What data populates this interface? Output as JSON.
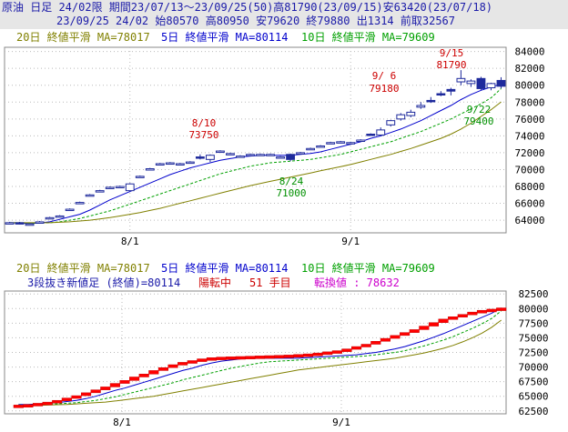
{
  "header": {
    "line1": "原油 日足 24/02限 期間23/07/13～23/09/25(50)高81790(23/09/15)安63420(23/07/18)",
    "line2": "23/09/25 24/02 始80570 高80950 安79620 終79880 出1314 前取32567"
  },
  "top_legend": {
    "ma20": "20日 終値平滑 MA=78017",
    "ma5": "5日 終値平滑 MA=80114",
    "ma10": "10日 終値平滑 MA=79609"
  },
  "bottom_legend": {
    "ma20": "20日 終値平滑 MA=78017",
    "ma5": "5日 終値平滑 MA=80114",
    "ma10": "10日 終値平滑 MA=79609"
  },
  "bottom_info": {
    "prefix": "3段抜き新値足 (終値)=80114",
    "status": "陽転中",
    "count": "51 手目",
    "switch": "転換値 : 78632"
  },
  "colors": {
    "header_bg": "#E6E6E6",
    "header_text": "#1A1AA8",
    "ma20": "#808000",
    "ma5": "#0000CC",
    "ma10": "#00A000",
    "up_fill": "#FFFFFF",
    "down_fill": "#1E2A9C",
    "candle_edge": "#1E2A9C",
    "brick_up": "#FF0000",
    "brick_edge": "#CC0000",
    "grid": "#BBBBBB",
    "annot_red": "#CC0000",
    "annot_green": "#009000",
    "magenta": "#CC00CC"
  },
  "chart_data": [
    {
      "type": "candlestick",
      "x": [
        "7/13",
        "7/14",
        "7/18",
        "7/19",
        "7/20",
        "7/21",
        "7/24",
        "7/25",
        "7/26",
        "7/27",
        "7/28",
        "7/31",
        "8/1",
        "8/2",
        "8/3",
        "8/4",
        "8/7",
        "8/8",
        "8/9",
        "8/10",
        "8/14",
        "8/15",
        "8/16",
        "8/17",
        "8/18",
        "8/21",
        "8/22",
        "8/23",
        "8/24",
        "8/25",
        "8/28",
        "8/29",
        "8/30",
        "8/31",
        "9/1",
        "9/4",
        "9/5",
        "9/6",
        "9/7",
        "9/8",
        "9/11",
        "9/12",
        "9/13",
        "9/14",
        "9/15",
        "9/19",
        "9/20",
        "9/21",
        "9/22",
        "9/25"
      ],
      "series": [
        {
          "name": "OHLC",
          "values": [
            [
              63700,
              63800,
              63600,
              63700
            ],
            [
              63700,
              63800,
              63500,
              63600
            ],
            [
              63500,
              63600,
              63420,
              63550
            ],
            [
              63800,
              63900,
              63700,
              63800
            ],
            [
              64300,
              64400,
              64200,
              64300
            ],
            [
              64500,
              64600,
              64400,
              64500
            ],
            [
              65300,
              65400,
              65200,
              65300
            ],
            [
              66100,
              66200,
              66000,
              66100
            ],
            [
              67000,
              67100,
              66900,
              67000
            ],
            [
              67500,
              67600,
              67400,
              67500
            ],
            [
              67800,
              68000,
              67700,
              67900
            ],
            [
              68000,
              68100,
              67900,
              68000
            ],
            [
              67500,
              68400,
              67400,
              68300
            ],
            [
              69200,
              69300,
              69100,
              69200
            ],
            [
              70100,
              70200,
              70000,
              70100
            ],
            [
              70700,
              70800,
              70600,
              70700
            ],
            [
              70800,
              70900,
              70700,
              70800
            ],
            [
              70700,
              70800,
              70600,
              70700
            ],
            [
              70900,
              71000,
              70800,
              70900
            ],
            [
              71500,
              71800,
              71200,
              71400
            ],
            [
              71200,
              71800,
              70900,
              71700
            ],
            [
              72200,
              72300,
              72100,
              72200
            ],
            [
              71900,
              72000,
              71800,
              71900
            ],
            [
              71600,
              71700,
              71500,
              71600
            ],
            [
              71800,
              71900,
              71700,
              71800
            ],
            [
              71800,
              71900,
              71700,
              71800
            ],
            [
              71800,
              71900,
              71700,
              71800
            ],
            [
              71500,
              71600,
              71400,
              71500
            ],
            [
              71800,
              71900,
              71000,
              71200
            ],
            [
              72000,
              72100,
              71900,
              72000
            ],
            [
              72500,
              72600,
              72400,
              72500
            ],
            [
              72800,
              72900,
              72700,
              72800
            ],
            [
              73200,
              73300,
              73100,
              73200
            ],
            [
              73300,
              73400,
              73200,
              73300
            ],
            [
              73200,
              73300,
              73100,
              73200
            ],
            [
              73500,
              73600,
              73400,
              73500
            ],
            [
              74200,
              74300,
              74000,
              74100
            ],
            [
              74100,
              75000,
              74000,
              74700
            ],
            [
              75300,
              75900,
              75100,
              75800
            ],
            [
              76000,
              76700,
              75800,
              76500
            ],
            [
              76400,
              77100,
              76200,
              76800
            ],
            [
              77400,
              78000,
              77200,
              77600
            ],
            [
              78200,
              78600,
              77900,
              78100
            ],
            [
              79000,
              79300,
              78700,
              78900
            ],
            [
              79500,
              79700,
              78800,
              79300
            ],
            [
              80400,
              81790,
              80000,
              80800
            ],
            [
              80200,
              80700,
              79800,
              80500
            ],
            [
              80800,
              81000,
              79400,
              79600
            ],
            [
              79700,
              80300,
              79400,
              80200
            ],
            [
              80570,
              80950,
              79620,
              79880
            ]
          ]
        },
        {
          "name": "MA5",
          "values": [
            63700,
            63650,
            63600,
            63650,
            63800,
            64100,
            64400,
            64700,
            65200,
            65800,
            66400,
            66900,
            67400,
            67900,
            68400,
            68900,
            69400,
            69800,
            70200,
            70500,
            70800,
            71100,
            71300,
            71500,
            71600,
            71700,
            71700,
            71700,
            71700,
            71800,
            71900,
            72100,
            72400,
            72700,
            73000,
            73300,
            73700,
            74000,
            74400,
            74800,
            75300,
            75800,
            76400,
            77000,
            77600,
            78300,
            78900,
            79400,
            79800,
            80114
          ]
        },
        {
          "name": "MA10",
          "values": [
            63700,
            63700,
            63650,
            63650,
            63700,
            63800,
            64000,
            64200,
            64500,
            64800,
            65100,
            65500,
            65900,
            66300,
            66700,
            67100,
            67500,
            67900,
            68300,
            68700,
            69100,
            69500,
            69800,
            70100,
            70400,
            70600,
            70800,
            70900,
            71000,
            71100,
            71200,
            71400,
            71600,
            71800,
            72100,
            72400,
            72700,
            73000,
            73300,
            73700,
            74100,
            74500,
            75000,
            75500,
            76000,
            76600,
            77200,
            77800,
            78500,
            79609
          ]
        },
        {
          "name": "MA20",
          "values": [
            63700,
            63700,
            63700,
            63700,
            63700,
            63750,
            63800,
            63900,
            64000,
            64150,
            64300,
            64500,
            64700,
            64900,
            65150,
            65400,
            65700,
            66000,
            66300,
            66600,
            66900,
            67200,
            67500,
            67800,
            68100,
            68350,
            68600,
            68850,
            69100,
            69350,
            69600,
            69850,
            70100,
            70350,
            70600,
            70900,
            71200,
            71500,
            71800,
            72150,
            72500,
            72900,
            73300,
            73700,
            74200,
            74800,
            75500,
            76300,
            77100,
            78017
          ]
        }
      ],
      "annotations": [
        {
          "label": "9/15",
          "value": "81790"
        },
        {
          "label": "9/ 6",
          "value": "79180"
        },
        {
          "label": "8/10",
          "value": "73750"
        },
        {
          "label": "8/24",
          "value": "71000"
        },
        {
          "label": "9/22",
          "value": "79400"
        }
      ],
      "ylim": [
        62500,
        84500
      ],
      "y_ticks": [
        "84000",
        "82000",
        "80000",
        "78000",
        "76000",
        "74000",
        "72000",
        "70000",
        "68000",
        "66000",
        "64000"
      ],
      "x_ticks": [
        "8/1",
        "9/1"
      ],
      "grid": true
    },
    {
      "type": "bar",
      "title": "3段抜き新値足",
      "categories": [
        "1",
        "2",
        "3",
        "4",
        "5",
        "6",
        "7",
        "8",
        "9",
        "10",
        "11",
        "12",
        "13",
        "14",
        "15",
        "16",
        "17",
        "18",
        "19",
        "20",
        "21",
        "22",
        "23",
        "24",
        "25",
        "26",
        "27",
        "28",
        "29",
        "30",
        "31",
        "32",
        "33",
        "34",
        "35",
        "36",
        "37",
        "38",
        "39",
        "40",
        "41",
        "42",
        "43",
        "44",
        "45",
        "46",
        "47",
        "48",
        "49",
        "50",
        "51"
      ],
      "series": [
        {
          "name": "brick_bottom",
          "values": [
            63400,
            63500,
            63600,
            63800,
            64000,
            64300,
            64700,
            65100,
            65600,
            66100,
            66600,
            67200,
            67700,
            68300,
            68800,
            69400,
            69900,
            70400,
            70800,
            71100,
            71400,
            71600,
            71700,
            71750,
            71800,
            71850,
            71900,
            71950,
            72000,
            72050,
            72150,
            72250,
            72400,
            72600,
            72800,
            73100,
            73500,
            73900,
            74400,
            74900,
            75400,
            75900,
            76400,
            77000,
            77600,
            78200,
            78600,
            79000,
            79400,
            79700,
            79700
          ]
        },
        {
          "name": "brick_top",
          "values": [
            63500,
            63600,
            63800,
            64000,
            64300,
            64700,
            65100,
            65600,
            66100,
            66600,
            67200,
            67700,
            68300,
            68800,
            69400,
            69900,
            70400,
            70800,
            71100,
            71400,
            71600,
            71700,
            71750,
            71800,
            71850,
            71900,
            71950,
            72000,
            72050,
            72150,
            72250,
            72400,
            72600,
            72800,
            73100,
            73500,
            73900,
            74400,
            74900,
            75400,
            75900,
            76400,
            77000,
            77600,
            78200,
            78600,
            79000,
            79400,
            79700,
            79900,
            80114
          ]
        },
        {
          "name": "MA5",
          "values": [
            63600,
            63600,
            63700,
            63800,
            63900,
            64100,
            64300,
            64600,
            65000,
            65500,
            66000,
            66400,
            66900,
            67400,
            67900,
            68400,
            68900,
            69400,
            69800,
            70300,
            70700,
            71000,
            71200,
            71400,
            71500,
            71500,
            71500,
            71500,
            71500,
            71500,
            71600,
            71700,
            71800,
            71900,
            72000,
            72100,
            72300,
            72500,
            72800,
            73100,
            73500,
            74000,
            74500,
            75100,
            75700,
            76400,
            77100,
            77800,
            78500,
            79200,
            80114
          ]
        },
        {
          "name": "MA10",
          "values": [
            63500,
            63550,
            63600,
            63650,
            63700,
            63800,
            63900,
            64100,
            64300,
            64600,
            64900,
            65300,
            65700,
            66100,
            66500,
            66900,
            67300,
            67800,
            68200,
            68600,
            69000,
            69400,
            69800,
            70100,
            70400,
            70700,
            70900,
            71000,
            71100,
            71200,
            71300,
            71400,
            71500,
            71600,
            71700,
            71800,
            71900,
            72100,
            72300,
            72500,
            72800,
            73200,
            73600,
            74100,
            74600,
            75200,
            75900,
            76600,
            77400,
            78300,
            79609
          ]
        },
        {
          "name": "MA20",
          "values": [
            63400,
            63400,
            63450,
            63500,
            63550,
            63600,
            63700,
            63800,
            63900,
            64000,
            64200,
            64400,
            64600,
            64800,
            65000,
            65300,
            65600,
            65900,
            66200,
            66500,
            66800,
            67100,
            67400,
            67700,
            68000,
            68300,
            68600,
            68900,
            69200,
            69500,
            69700,
            69900,
            70100,
            70300,
            70500,
            70700,
            70900,
            71100,
            71300,
            71500,
            71800,
            72100,
            72400,
            72800,
            73200,
            73700,
            74300,
            75000,
            75800,
            76800,
            78017
          ]
        }
      ],
      "ylim": [
        62000,
        83000
      ],
      "y_ticks": [
        "82500",
        "80000",
        "77500",
        "75000",
        "72500",
        "70000",
        "67500",
        "65000",
        "62500"
      ],
      "x_ticks": [
        "8/1",
        "9/1"
      ],
      "grid": true
    }
  ]
}
